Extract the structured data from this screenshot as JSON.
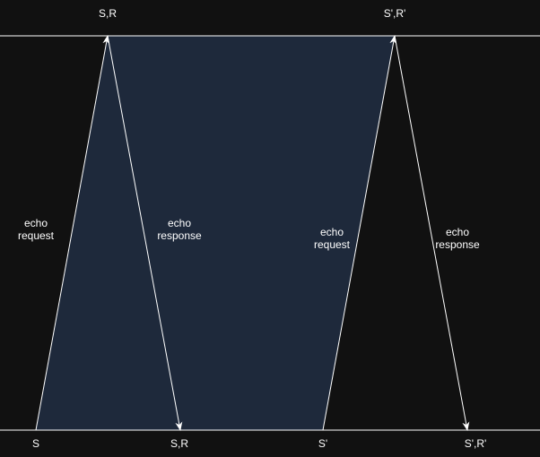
{
  "colors": {
    "background": "#111111",
    "line": "#ffffff",
    "shaded_region": "#1e293b",
    "text": "#ffffff"
  },
  "top_axis": {
    "label_left": "S,R",
    "label_right": "S',R'"
  },
  "bottom_axis": {
    "label_1": "S",
    "label_2": "S,R",
    "label_3": "S'",
    "label_4": "S',R'"
  },
  "messages": [
    {
      "line1": "echo",
      "line2": "request"
    },
    {
      "line1": "echo",
      "line2": "response"
    },
    {
      "line1": "echo",
      "line2": "request"
    },
    {
      "line1": "echo",
      "line2": "response"
    }
  ]
}
